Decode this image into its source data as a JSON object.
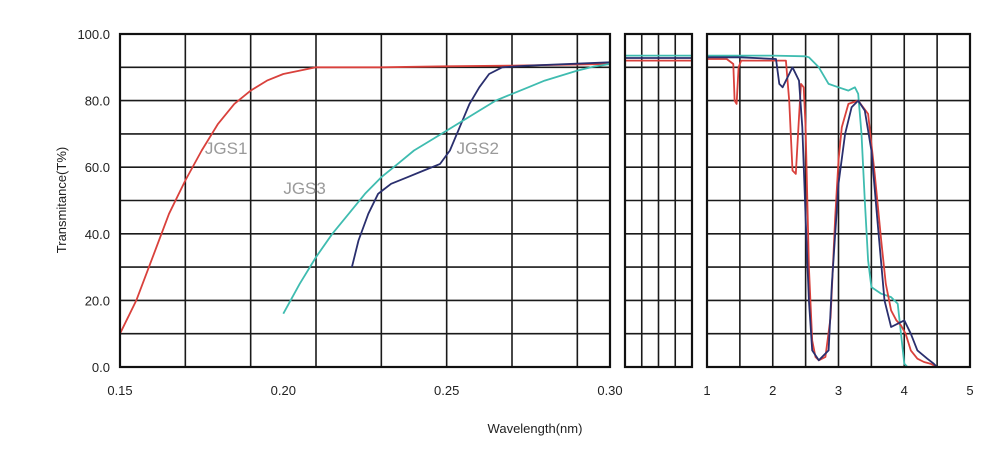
{
  "chart_data": {
    "type": "line",
    "xlabel": "Wavelength(nm)",
    "ylabel": "Transmitance(T%)",
    "ylim": [
      0,
      100
    ],
    "y_ticks": [
      "0.0",
      "20.0",
      "40.0",
      "60.0",
      "80.0",
      "100.0"
    ],
    "grid": true,
    "colors": {
      "JGS1": "#d9413c",
      "JGS2": "#2a2f6e",
      "JGS3": "#3fbcb0",
      "grid": "#1a1a1a"
    },
    "panels": [
      {
        "name": "uv",
        "xlim": [
          0.15,
          0.3
        ],
        "x_ticks": [
          0.15,
          0.2,
          0.25,
          0.3
        ],
        "x_tick_labels": [
          "0.15",
          "0.20",
          "0.25",
          "0.30"
        ],
        "grid_step": 0.02,
        "series": [
          {
            "name": "JGS1",
            "points": [
              [
                0.15,
                10
              ],
              [
                0.155,
                20
              ],
              [
                0.16,
                33
              ],
              [
                0.165,
                46
              ],
              [
                0.17,
                56
              ],
              [
                0.175,
                65
              ],
              [
                0.18,
                73
              ],
              [
                0.185,
                79
              ],
              [
                0.19,
                83
              ],
              [
                0.195,
                86
              ],
              [
                0.2,
                88
              ],
              [
                0.205,
                89
              ],
              [
                0.21,
                90
              ],
              [
                0.23,
                90
              ],
              [
                0.25,
                90.3
              ],
              [
                0.27,
                90.5
              ],
              [
                0.3,
                91
              ]
            ]
          },
          {
            "name": "JGS2",
            "points": [
              [
                0.221,
                30
              ],
              [
                0.223,
                38
              ],
              [
                0.226,
                46
              ],
              [
                0.229,
                52
              ],
              [
                0.233,
                55
              ],
              [
                0.238,
                57
              ],
              [
                0.243,
                59
              ],
              [
                0.248,
                61
              ],
              [
                0.251,
                65
              ],
              [
                0.254,
                72
              ],
              [
                0.257,
                79
              ],
              [
                0.26,
                84
              ],
              [
                0.263,
                88
              ],
              [
                0.267,
                90
              ],
              [
                0.275,
                90.5
              ],
              [
                0.3,
                91.5
              ]
            ]
          },
          {
            "name": "JGS3",
            "points": [
              [
                0.2,
                16
              ],
              [
                0.205,
                25
              ],
              [
                0.21,
                33
              ],
              [
                0.215,
                40
              ],
              [
                0.22,
                46
              ],
              [
                0.225,
                52
              ],
              [
                0.23,
                57
              ],
              [
                0.235,
                61
              ],
              [
                0.24,
                65
              ],
              [
                0.245,
                68
              ],
              [
                0.25,
                71
              ],
              [
                0.255,
                74
              ],
              [
                0.26,
                77
              ],
              [
                0.265,
                80
              ],
              [
                0.27,
                82
              ],
              [
                0.275,
                84
              ],
              [
                0.28,
                86
              ],
              [
                0.285,
                87.5
              ],
              [
                0.29,
                89
              ],
              [
                0.295,
                90.2
              ],
              [
                0.3,
                91
              ]
            ]
          }
        ],
        "labels": [
          {
            "series": "JGS1",
            "text": "JGS1",
            "x": 0.176,
            "y": 64
          },
          {
            "series": "JGS3",
            "text": "JGS3",
            "x": 0.2,
            "y": 52
          },
          {
            "series": "JGS2",
            "text": "JGS2",
            "x": 0.253,
            "y": 64
          }
        ]
      },
      {
        "name": "mid",
        "xlim": [
          0,
          1
        ],
        "x_ticks": [],
        "x_tick_labels": [],
        "grid_step": 0.25,
        "series": [
          {
            "name": "JGS3",
            "points": [
              [
                0,
                93.5
              ],
              [
                1,
                93.5
              ]
            ]
          },
          {
            "name": "JGS2",
            "points": [
              [
                0,
                92.8
              ],
              [
                1,
                92.8
              ]
            ]
          },
          {
            "name": "JGS1",
            "points": [
              [
                0,
                92
              ],
              [
                1,
                92
              ]
            ]
          }
        ]
      },
      {
        "name": "ir",
        "xlim": [
          1,
          5
        ],
        "x_ticks": [
          1,
          2,
          3,
          4,
          5
        ],
        "x_tick_labels": [
          "1",
          "2",
          "3",
          "4",
          "5"
        ],
        "grid_step": 0.5,
        "series": [
          {
            "name": "JGS3",
            "points": [
              [
                1.0,
                93.5
              ],
              [
                1.5,
                93.5
              ],
              [
                2.0,
                93.5
              ],
              [
                2.5,
                93.3
              ],
              [
                2.55,
                93
              ],
              [
                2.7,
                90
              ],
              [
                2.85,
                85
              ],
              [
                3.0,
                84
              ],
              [
                3.15,
                83
              ],
              [
                3.25,
                84
              ],
              [
                3.3,
                82
              ],
              [
                3.35,
                70
              ],
              [
                3.4,
                50
              ],
              [
                3.45,
                32
              ],
              [
                3.5,
                24
              ],
              [
                3.65,
                22
              ],
              [
                3.8,
                21
              ],
              [
                3.9,
                19
              ],
              [
                3.95,
                10
              ],
              [
                4.0,
                1
              ],
              [
                4.05,
                0
              ]
            ]
          },
          {
            "name": "JGS1",
            "points": [
              [
                1.0,
                92.5
              ],
              [
                1.3,
                92.5
              ],
              [
                1.4,
                91
              ],
              [
                1.42,
                80
              ],
              [
                1.45,
                79
              ],
              [
                1.48,
                90
              ],
              [
                1.52,
                92
              ],
              [
                2.2,
                92
              ],
              [
                2.25,
                80
              ],
              [
                2.3,
                59
              ],
              [
                2.35,
                58
              ],
              [
                2.4,
                75
              ],
              [
                2.43,
                85
              ],
              [
                2.47,
                84
              ],
              [
                2.5,
                72
              ],
              [
                2.55,
                30
              ],
              [
                2.6,
                8
              ],
              [
                2.65,
                3
              ],
              [
                2.7,
                2
              ],
              [
                2.8,
                3
              ],
              [
                2.88,
                15
              ],
              [
                2.95,
                45
              ],
              [
                3.0,
                62
              ],
              [
                3.05,
                72
              ],
              [
                3.15,
                79
              ],
              [
                3.3,
                80
              ],
              [
                3.45,
                76
              ],
              [
                3.55,
                58
              ],
              [
                3.65,
                38
              ],
              [
                3.72,
                25
              ],
              [
                3.8,
                17
              ],
              [
                3.88,
                14
              ],
              [
                3.95,
                12.5
              ],
              [
                4.02,
                10
              ],
              [
                4.1,
                5
              ],
              [
                4.2,
                2.5
              ],
              [
                4.3,
                1.5
              ],
              [
                4.4,
                1
              ],
              [
                4.5,
                0
              ]
            ]
          },
          {
            "name": "JGS2",
            "points": [
              [
                1.0,
                93
              ],
              [
                1.5,
                93
              ],
              [
                2.05,
                92.5
              ],
              [
                2.1,
                85
              ],
              [
                2.15,
                84
              ],
              [
                2.25,
                88
              ],
              [
                2.3,
                90
              ],
              [
                2.4,
                86
              ],
              [
                2.45,
                72
              ],
              [
                2.5,
                45
              ],
              [
                2.55,
                20
              ],
              [
                2.6,
                5
              ],
              [
                2.7,
                2
              ],
              [
                2.85,
                5
              ],
              [
                2.9,
                25
              ],
              [
                3.0,
                55
              ],
              [
                3.1,
                70
              ],
              [
                3.2,
                78
              ],
              [
                3.3,
                80
              ],
              [
                3.4,
                77
              ],
              [
                3.5,
                65
              ],
              [
                3.6,
                42
              ],
              [
                3.7,
                20
              ],
              [
                3.8,
                12
              ],
              [
                3.9,
                13
              ],
              [
                4.0,
                14
              ],
              [
                4.1,
                10
              ],
              [
                4.2,
                5
              ],
              [
                4.35,
                2.5
              ],
              [
                4.45,
                1
              ],
              [
                4.5,
                0
              ]
            ]
          }
        ]
      }
    ]
  }
}
